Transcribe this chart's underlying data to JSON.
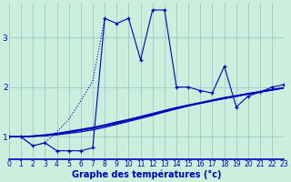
{
  "bg_color": "#cceedd",
  "line_color": "#0000bb",
  "grid_color": "#99cccc",
  "xlabel": "Graphe des températures (°c)",
  "xlabel_fontsize": 7,
  "xtick_fontsize": 5.5,
  "ytick_fontsize": 6.5,
  "xlim": [
    0,
    23
  ],
  "ylim": [
    0.55,
    3.7
  ],
  "yticks": [
    1,
    2,
    3
  ],
  "xticks": [
    0,
    1,
    2,
    3,
    4,
    5,
    6,
    7,
    8,
    9,
    10,
    11,
    12,
    13,
    14,
    15,
    16,
    17,
    18,
    19,
    20,
    21,
    22,
    23
  ],
  "jagged": {
    "x": [
      0,
      1,
      2,
      3,
      4,
      5,
      6,
      7,
      8,
      9,
      10,
      11,
      12,
      13,
      14,
      15,
      16,
      17,
      18,
      19,
      20,
      21,
      22,
      23
    ],
    "y": [
      1.0,
      1.0,
      0.82,
      0.88,
      0.72,
      0.72,
      0.72,
      0.78,
      3.38,
      3.28,
      3.38,
      2.55,
      3.55,
      3.55,
      2.0,
      2.0,
      1.93,
      1.88,
      2.42,
      1.6,
      1.82,
      1.9,
      2.0,
      2.05
    ]
  },
  "steep_line": {
    "x": [
      0,
      1,
      2,
      3,
      4,
      5,
      6,
      7,
      8
    ],
    "y": [
      1.0,
      1.0,
      0.82,
      0.88,
      1.1,
      1.35,
      1.72,
      2.12,
      3.38
    ]
  },
  "smooth_lines": [
    [
      1.0,
      1.0,
      1.01,
      1.02,
      1.04,
      1.07,
      1.1,
      1.14,
      1.19,
      1.25,
      1.31,
      1.37,
      1.43,
      1.5,
      1.56,
      1.62,
      1.67,
      1.72,
      1.77,
      1.81,
      1.86,
      1.9,
      1.94,
      1.98
    ],
    [
      1.0,
      1.0,
      1.01,
      1.03,
      1.06,
      1.09,
      1.13,
      1.17,
      1.22,
      1.27,
      1.33,
      1.39,
      1.45,
      1.51,
      1.57,
      1.63,
      1.68,
      1.73,
      1.77,
      1.82,
      1.86,
      1.9,
      1.94,
      1.98
    ],
    [
      1.0,
      1.0,
      1.01,
      1.03,
      1.06,
      1.1,
      1.14,
      1.18,
      1.23,
      1.28,
      1.34,
      1.4,
      1.46,
      1.52,
      1.58,
      1.63,
      1.68,
      1.73,
      1.78,
      1.82,
      1.87,
      1.91,
      1.95,
      1.99
    ],
    [
      1.0,
      1.0,
      1.02,
      1.04,
      1.07,
      1.11,
      1.15,
      1.19,
      1.24,
      1.3,
      1.35,
      1.41,
      1.47,
      1.53,
      1.59,
      1.64,
      1.69,
      1.74,
      1.79,
      1.83,
      1.87,
      1.91,
      1.95,
      1.99
    ]
  ]
}
